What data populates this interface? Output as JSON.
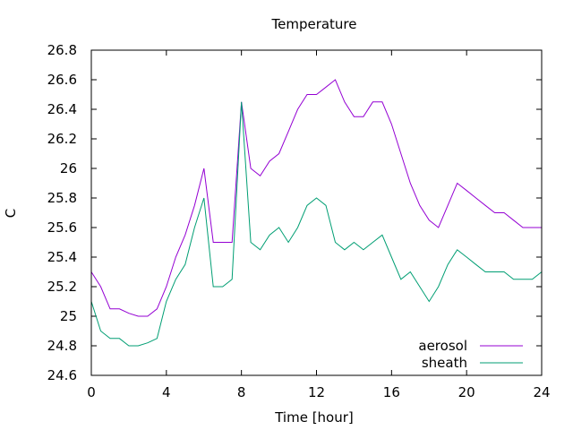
{
  "chart_data": {
    "type": "line",
    "title": "Temperature",
    "xlabel": "Time [hour]",
    "ylabel": "C",
    "xlim": [
      0,
      24
    ],
    "ylim": [
      24.6,
      26.8
    ],
    "xticks": [
      0,
      4,
      8,
      12,
      16,
      20,
      24
    ],
    "xtick_labels": [
      "0",
      "4",
      "8",
      "12",
      "16",
      "20",
      "24"
    ],
    "yticks": [
      24.6,
      24.8,
      25,
      25.2,
      25.4,
      25.6,
      25.8,
      26,
      26.2,
      26.4,
      26.6,
      26.8
    ],
    "ytick_labels": [
      "24.6",
      "24.8",
      "25",
      "25.2",
      "25.4",
      "25.6",
      "25.8",
      "26",
      "26.2",
      "26.4",
      "26.6",
      "26.8"
    ],
    "grid": false,
    "legend_position": "bottom-right",
    "x": [
      0,
      0.5,
      1,
      1.5,
      2,
      2.5,
      3,
      3.5,
      4,
      4.5,
      5,
      5.5,
      6,
      6.5,
      7,
      7.5,
      8,
      8.5,
      9,
      9.5,
      10,
      10.5,
      11,
      11.5,
      12,
      12.5,
      13,
      13.5,
      14,
      14.5,
      15,
      15.5,
      16,
      16.5,
      17,
      17.5,
      18,
      18.5,
      19,
      19.5,
      20,
      20.5,
      21,
      21.5,
      22,
      22.5,
      23,
      23.5,
      24
    ],
    "series": [
      {
        "name": "aerosol",
        "color": "#9400d3",
        "values": [
          25.3,
          25.2,
          25.05,
          25.05,
          25.02,
          25.0,
          25.0,
          25.05,
          25.2,
          25.4,
          25.55,
          25.75,
          26.0,
          25.5,
          25.5,
          25.5,
          26.45,
          26.0,
          25.95,
          26.05,
          26.1,
          26.25,
          26.4,
          26.5,
          26.5,
          26.55,
          26.6,
          26.45,
          26.35,
          26.35,
          26.45,
          26.45,
          26.3,
          26.1,
          25.9,
          25.75,
          25.65,
          25.6,
          25.75,
          25.9,
          25.85,
          25.8,
          25.75,
          25.7,
          25.7,
          25.65,
          25.6,
          25.6,
          25.6
        ]
      },
      {
        "name": "sheath",
        "color": "#009e73",
        "values": [
          25.1,
          24.9,
          24.85,
          24.85,
          24.8,
          24.8,
          24.82,
          24.85,
          25.1,
          25.25,
          25.35,
          25.6,
          25.8,
          25.2,
          25.2,
          25.25,
          26.45,
          25.5,
          25.45,
          25.55,
          25.6,
          25.5,
          25.6,
          25.75,
          25.8,
          25.75,
          25.5,
          25.45,
          25.5,
          25.45,
          25.5,
          25.55,
          25.4,
          25.25,
          25.3,
          25.2,
          25.1,
          25.2,
          25.35,
          25.45,
          25.4,
          25.35,
          25.3,
          25.3,
          25.3,
          25.25,
          25.25,
          25.25,
          25.3
        ]
      }
    ]
  }
}
